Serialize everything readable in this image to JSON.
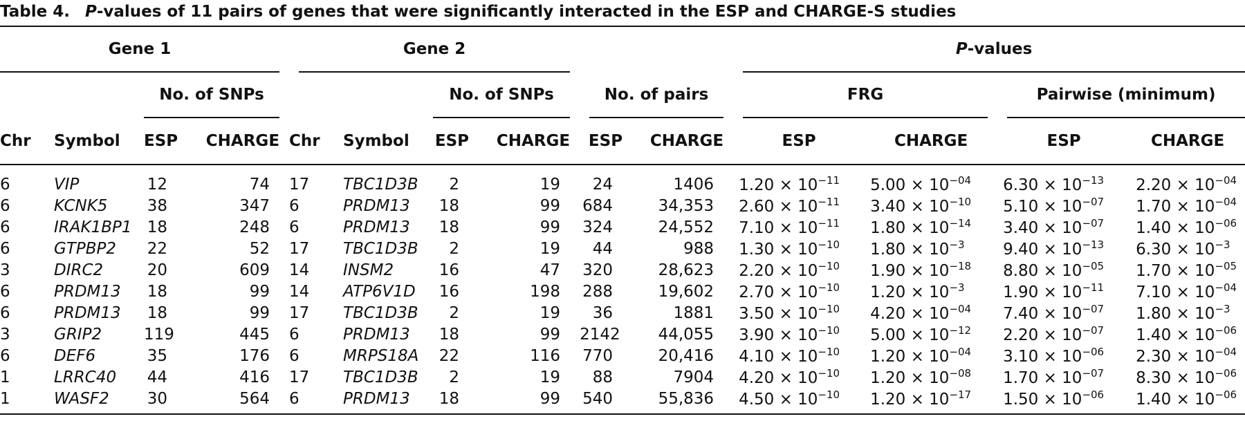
{
  "caption": {
    "label": "Table 4.",
    "italic": "P",
    "rest": "-values of 11 pairs of genes that were significantly interacted in the ESP and CHARGE-S studies"
  },
  "table": {
    "groups": {
      "gene1": "Gene 1",
      "gene2": "Gene 2",
      "pvalues": {
        "italic": "P",
        "rest": "-values"
      }
    },
    "subgroups": {
      "snps1": "No. of SNPs",
      "snps2": "No. of SNPs",
      "pairs": "No. of pairs",
      "frg": "FRG",
      "pairwise": "Pairwise (minimum)"
    },
    "columns": [
      "Chr",
      "Symbol",
      "ESP",
      "CHARGE",
      "Chr",
      "Symbol",
      "ESP",
      "CHARGE",
      "ESP",
      "CHARGE",
      "ESP",
      "CHARGE",
      "ESP",
      "CHARGE"
    ],
    "rows": [
      [
        "6",
        "VIP",
        "12",
        "74",
        "17",
        "TBC1D3B",
        "2",
        "19",
        "24",
        "1406",
        [
          "1.20 × 10",
          "−11"
        ],
        [
          "5.00 × 10",
          "−04"
        ],
        [
          "6.30 × 10",
          "−13"
        ],
        [
          "2.20 × 10",
          "−04"
        ]
      ],
      [
        "6",
        "KCNK5",
        "38",
        "347",
        "6",
        "PRDM13",
        "18",
        "99",
        "684",
        "34,353",
        [
          "2.60 × 10",
          "−11"
        ],
        [
          "3.40 × 10",
          "−10"
        ],
        [
          "5.10 × 10",
          "−07"
        ],
        [
          "1.70 × 10",
          "−04"
        ]
      ],
      [
        "6",
        "IRAK1BP1",
        "18",
        "248",
        "6",
        "PRDM13",
        "18",
        "99",
        "324",
        "24,552",
        [
          "7.10 × 10",
          "−11"
        ],
        [
          "1.80 × 10",
          "−14"
        ],
        [
          "3.40 × 10",
          "−07"
        ],
        [
          "1.40 × 10",
          "−06"
        ]
      ],
      [
        "6",
        "GTPBP2",
        "22",
        "52",
        "17",
        "TBC1D3B",
        "2",
        "19",
        "44",
        "988",
        [
          "1.30 × 10",
          "−10"
        ],
        [
          "1.80 × 10",
          "−3"
        ],
        [
          "9.40 × 10",
          "−13"
        ],
        [
          "6.30 × 10",
          "−3"
        ]
      ],
      [
        "3",
        "DIRC2",
        "20",
        "609",
        "14",
        "INSM2",
        "16",
        "47",
        "320",
        "28,623",
        [
          "2.20 × 10",
          "−10"
        ],
        [
          "1.90 × 10",
          "−18"
        ],
        [
          "8.80 × 10",
          "−05"
        ],
        [
          "1.70 × 10",
          "−05"
        ]
      ],
      [
        "6",
        "PRDM13",
        "18",
        "99",
        "14",
        "ATP6V1D",
        "16",
        "198",
        "288",
        "19,602",
        [
          "2.70 × 10",
          "−10"
        ],
        [
          "1.20 × 10",
          "−3"
        ],
        [
          "1.90 × 10",
          "−11"
        ],
        [
          "7.10 × 10",
          "−04"
        ]
      ],
      [
        "6",
        "PRDM13",
        "18",
        "99",
        "17",
        "TBC1D3B",
        "2",
        "19",
        "36",
        "1881",
        [
          "3.50 × 10",
          "−10"
        ],
        [
          "4.20 × 10",
          "−04"
        ],
        [
          "7.40 × 10",
          "−07"
        ],
        [
          "1.80 × 10",
          "−3"
        ]
      ],
      [
        "3",
        "GRIP2",
        "119",
        "445",
        "6",
        "PRDM13",
        "18",
        "99",
        "2142",
        "44,055",
        [
          "3.90 × 10",
          "−10"
        ],
        [
          "5.00 × 10",
          "−12"
        ],
        [
          "2.20 × 10",
          "−07"
        ],
        [
          "1.40 × 10",
          "−06"
        ]
      ],
      [
        "6",
        "DEF6",
        "35",
        "176",
        "6",
        "MRPS18A",
        "22",
        "116",
        "770",
        "20,416",
        [
          "4.10 × 10",
          "−10"
        ],
        [
          "1.20 × 10",
          "−04"
        ],
        [
          "3.10 × 10",
          "−06"
        ],
        [
          "2.30 × 10",
          "−04"
        ]
      ],
      [
        "1",
        "LRRC40",
        "44",
        "416",
        "17",
        "TBC1D3B",
        "2",
        "19",
        "88",
        "7904",
        [
          "4.20 × 10",
          "−10"
        ],
        [
          "1.20 × 10",
          "−08"
        ],
        [
          "1.70 × 10",
          "−07"
        ],
        [
          "8.30 × 10",
          "−06"
        ]
      ],
      [
        "1",
        "WASF2",
        "30",
        "564",
        "6",
        "PRDM13",
        "18",
        "99",
        "540",
        "55,836",
        [
          "4.50 × 10",
          "−10"
        ],
        [
          "1.20 × 10",
          "−17"
        ],
        [
          "1.50 × 10",
          "−06"
        ],
        [
          "1.40 × 10",
          "−06"
        ]
      ]
    ]
  }
}
